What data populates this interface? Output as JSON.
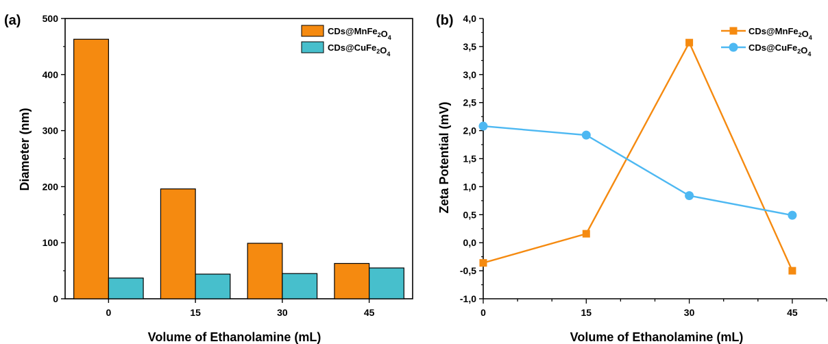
{
  "chart_data": [
    {
      "panel": "(a)",
      "type": "bar",
      "categories": [
        "0",
        "15",
        "30",
        "45"
      ],
      "series": [
        {
          "name": "CDs@MnFe2O4",
          "values": [
            463,
            196,
            99,
            63
          ],
          "color": "#f58a10"
        },
        {
          "name": "CDs@CuFe2O4",
          "values": [
            37,
            44,
            45,
            55
          ],
          "color": "#47bfcc"
        }
      ],
      "xlabel": "Volume of Ethanolamine (mL)",
      "ylabel": "Diameter (nm)",
      "ylim": [
        0,
        500
      ],
      "yticks": [
        "0",
        "100",
        "200",
        "300",
        "400",
        "500"
      ],
      "grid": false,
      "legend": "top-right"
    },
    {
      "panel": "(b)",
      "type": "line",
      "x": [
        0,
        15,
        30,
        45
      ],
      "xticks": [
        "0",
        "15",
        "30",
        "45"
      ],
      "series": [
        {
          "name": "CDs@MnFe2O4",
          "values": [
            -0.36,
            0.16,
            3.57,
            -0.5
          ],
          "color": "#f58a10",
          "marker": "square"
        },
        {
          "name": "CDs@CuFe2O4",
          "values": [
            2.08,
            1.92,
            0.84,
            0.49
          ],
          "color": "#4db8f2",
          "marker": "circle"
        }
      ],
      "xlabel": "Volume of Ethanolamine (mL)",
      "ylabel": "Zeta Potential (mV)",
      "xlim": [
        0,
        50
      ],
      "ylim": [
        -1.0,
        4.0
      ],
      "yticks": [
        "-1,0",
        "-0,5",
        "0,0",
        "0,5",
        "1,0",
        "1,5",
        "2,0",
        "2,5",
        "3,0",
        "3,5",
        "4,0"
      ],
      "grid": false,
      "legend": "top-right"
    }
  ]
}
